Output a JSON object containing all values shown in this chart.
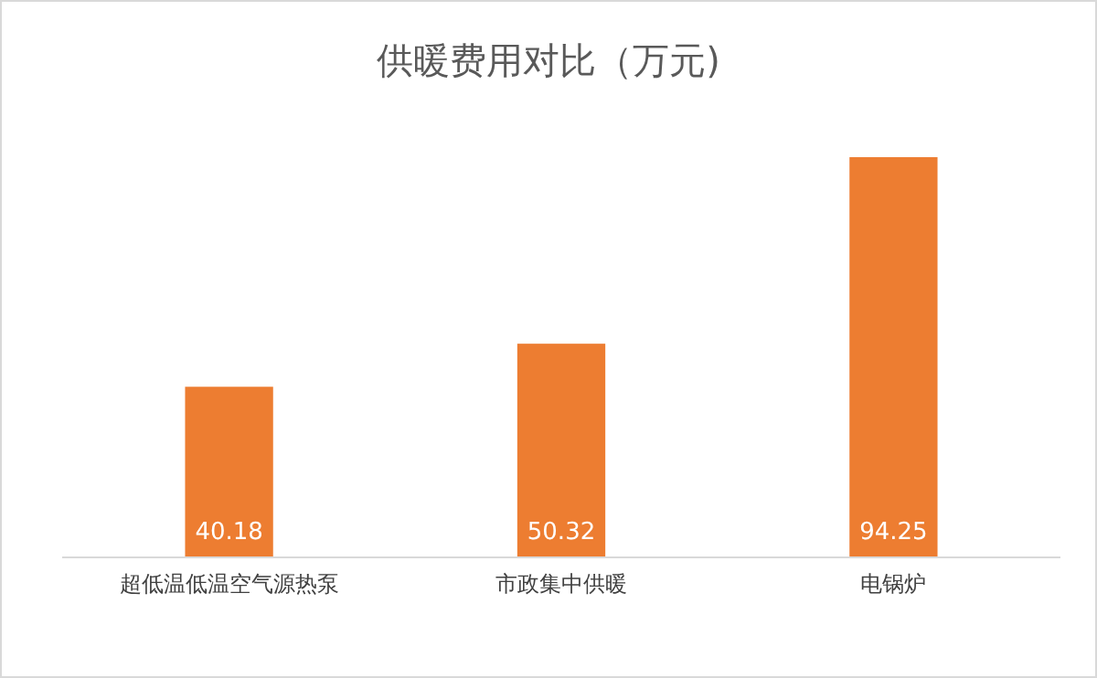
{
  "chart_data": {
    "type": "bar",
    "title": "供暖费用对比（万元)",
    "categories": [
      "超低温低温空气源热泵",
      "市政集中供暖",
      "电锅炉"
    ],
    "values": [
      40.18,
      50.32,
      94.25
    ],
    "color": "#ed7d31",
    "data_labels": true
  }
}
